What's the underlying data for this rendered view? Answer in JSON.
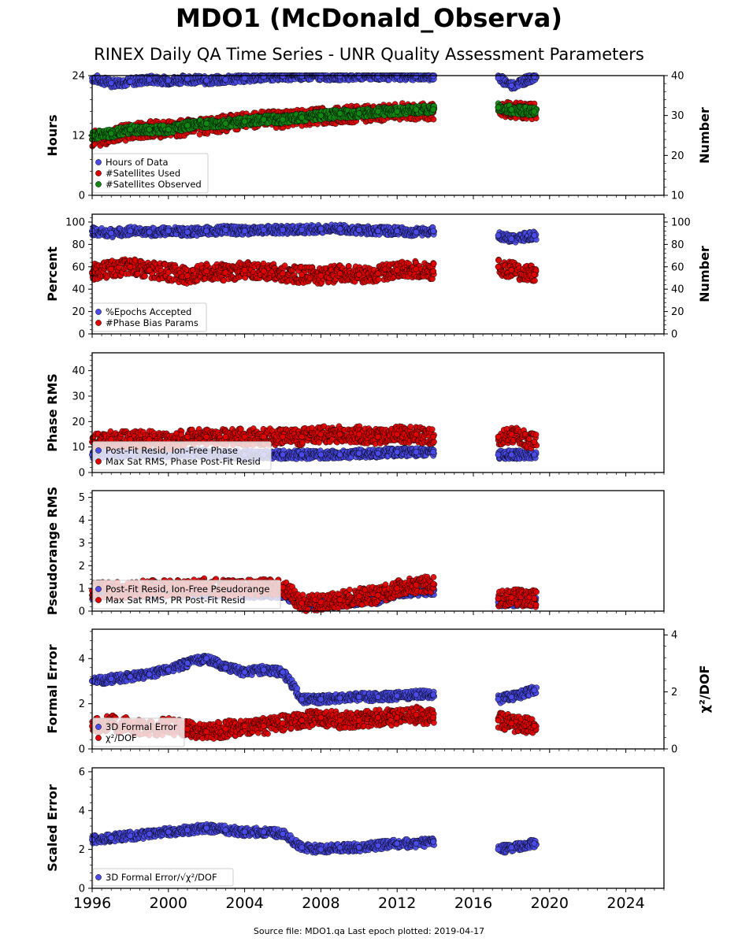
{
  "title": "MDO1 (McDonald_Observa)",
  "subtitle": "RINEX Daily QA Time Series - UNR Quality Assessment Parameters",
  "footer": "Source file: MDO1.qa Last epoch plotted: 2019-04-17",
  "colors": {
    "blue": "#4a4ae8",
    "red": "#e00000",
    "green": "#118811"
  },
  "chart_data": [
    {
      "type": "scatter",
      "ylabel": "Hours",
      "ylabel_right": "Number",
      "ylim": [
        0,
        24
      ],
      "yticks": [
        0,
        12,
        24
      ],
      "ylim_right": [
        10,
        40
      ],
      "yticks_right": [
        10,
        20,
        30,
        40
      ],
      "xlim": [
        1996,
        2026
      ],
      "legend": "bottom-left",
      "series": [
        {
          "name": "Hours of Data",
          "color": "blue",
          "axis": "left",
          "x": [
            1996.0,
            1997.0,
            1998.0,
            1999.0,
            2000.0,
            2001.0,
            2002.0,
            2003.0,
            2004.0,
            2005.0,
            2006.0,
            2007.0,
            2008.0,
            2009.0,
            2010.0,
            2011.0,
            2012.0,
            2013.0,
            2013.9,
            2017.3,
            2018.0,
            2019.2
          ],
          "y": [
            23.5,
            22.5,
            22.8,
            23.2,
            23.0,
            23.3,
            23.0,
            23.2,
            23.5,
            23.8,
            23.9,
            23.9,
            23.9,
            23.9,
            23.9,
            23.9,
            23.9,
            23.9,
            23.9,
            23.5,
            22.0,
            23.8
          ]
        },
        {
          "name": "#Satellites Used",
          "color": "red",
          "axis": "right",
          "x": [
            1996.0,
            1997.0,
            1998.0,
            1999.0,
            2000.0,
            2001.0,
            2002.0,
            2003.0,
            2004.0,
            2005.0,
            2006.0,
            2007.0,
            2008.0,
            2009.0,
            2010.0,
            2011.0,
            2012.0,
            2013.0,
            2013.9,
            2017.3,
            2018.0,
            2019.2
          ],
          "y": [
            24,
            25,
            26,
            26.5,
            26.5,
            27,
            27.5,
            28,
            28.5,
            29,
            29,
            29.5,
            30,
            30,
            30.5,
            30.5,
            31,
            31,
            31,
            32,
            31.5,
            31
          ]
        },
        {
          "name": "#Satellites Observed",
          "color": "green",
          "axis": "right",
          "x": [
            1996.0,
            1997.0,
            1998.0,
            1999.0,
            2000.0,
            2001.0,
            2002.0,
            2003.0,
            2004.0,
            2005.0,
            2006.0,
            2007.0,
            2008.0,
            2009.0,
            2010.0,
            2011.0,
            2012.0,
            2013.0,
            2013.9,
            2017.3,
            2018.0,
            2019.2
          ],
          "y": [
            25,
            25.5,
            26.5,
            26.5,
            26.5,
            27.5,
            28,
            28,
            28.5,
            29,
            29,
            29.5,
            30,
            30.5,
            30.5,
            31,
            31,
            31.5,
            31.5,
            32,
            31.5,
            31
          ]
        }
      ]
    },
    {
      "type": "scatter",
      "ylabel": "Percent",
      "ylabel_right": "Number",
      "ylim": [
        0,
        107
      ],
      "yticks": [
        0,
        20,
        40,
        60,
        80,
        100
      ],
      "ylim_right": [
        0,
        107
      ],
      "yticks_right": [
        0,
        20,
        40,
        60,
        80,
        100
      ],
      "xlim": [
        1996,
        2026
      ],
      "legend": "bottom-left",
      "series": [
        {
          "name": "%Epochs Accepted",
          "color": "blue",
          "axis": "left",
          "x": [
            1996.0,
            1997.0,
            1998.0,
            1999.0,
            2000.0,
            2001.0,
            2002.0,
            2003.0,
            2004.0,
            2005.0,
            2006.0,
            2007.0,
            2008.0,
            2009.0,
            2010.0,
            2011.0,
            2012.0,
            2013.0,
            2013.9,
            2017.3,
            2018.0,
            2019.2
          ],
          "y": [
            92,
            90,
            92,
            91,
            92,
            91,
            92,
            93,
            92,
            93,
            93,
            93,
            94,
            94,
            93,
            92,
            92,
            91,
            92,
            88,
            85,
            88
          ]
        },
        {
          "name": "#Phase Bias Params",
          "color": "red",
          "axis": "right",
          "x": [
            1996.0,
            1997.0,
            1998.0,
            1999.0,
            2000.0,
            2001.0,
            2002.0,
            2003.0,
            2004.0,
            2005.0,
            2006.0,
            2007.0,
            2008.0,
            2009.0,
            2010.0,
            2011.0,
            2012.0,
            2013.0,
            2013.9,
            2017.3,
            2018.0,
            2019.2
          ],
          "y": [
            55,
            58,
            60,
            57,
            55,
            52,
            56,
            55,
            57,
            56,
            54,
            53,
            52,
            54,
            53,
            54,
            57,
            58,
            56,
            60,
            57,
            53
          ]
        }
      ]
    },
    {
      "type": "scatter",
      "ylabel": "Phase RMS",
      "ylim": [
        0,
        47
      ],
      "yticks": [
        0,
        10,
        20,
        30,
        40
      ],
      "xlim": [
        1996,
        2026
      ],
      "legend": "bottom-left",
      "series": [
        {
          "name": "Post-Fit Resid, Ion-Free Phase",
          "color": "blue",
          "axis": "left",
          "x": [
            1996.0,
            1997.0,
            1998.0,
            1999.0,
            2000.0,
            2001.0,
            2002.0,
            2003.0,
            2004.0,
            2005.0,
            2006.0,
            2007.0,
            2008.0,
            2009.0,
            2010.0,
            2011.0,
            2012.0,
            2013.0,
            2013.9,
            2017.3,
            2018.0,
            2019.2
          ],
          "y": [
            7,
            7.5,
            7.5,
            7.5,
            7.5,
            7.5,
            7.5,
            7,
            7,
            7,
            7,
            7,
            7,
            7,
            7.5,
            7.5,
            8,
            8,
            8,
            7,
            7,
            7
          ]
        },
        {
          "name": "Max Sat RMS, Phase Post-Fit Resid",
          "color": "red",
          "axis": "left",
          "x": [
            1996.0,
            1997.0,
            1998.0,
            1999.0,
            2000.0,
            2001.0,
            2002.0,
            2003.0,
            2004.0,
            2005.0,
            2006.0,
            2007.0,
            2008.0,
            2009.0,
            2010.0,
            2011.0,
            2012.0,
            2013.0,
            2013.9,
            2017.3,
            2018.0,
            2019.2
          ],
          "y": [
            12,
            13,
            13,
            13,
            12,
            14,
            14,
            14,
            14,
            14,
            14,
            14,
            15,
            15,
            15,
            14,
            15,
            15,
            14,
            14,
            15,
            12
          ]
        }
      ]
    },
    {
      "type": "scatter",
      "ylabel": "Pseudorange RMS",
      "ylim": [
        0,
        5.3
      ],
      "yticks": [
        0,
        1,
        2,
        3,
        4,
        5
      ],
      "xlim": [
        1996,
        2026
      ],
      "legend": "bottom-left",
      "series": [
        {
          "name": "Post-Fit Resid, Ion-Free Pseudorange",
          "color": "blue",
          "axis": "left",
          "x": [
            1996.0,
            1997.0,
            1998.0,
            1999.0,
            2000.0,
            2001.0,
            2002.0,
            2003.0,
            2004.0,
            2005.0,
            2006.0,
            2007.0,
            2008.0,
            2009.0,
            2010.0,
            2011.0,
            2012.0,
            2013.0,
            2013.9,
            2017.3,
            2018.0,
            2019.2
          ],
          "y": [
            0.7,
            0.75,
            0.75,
            0.75,
            0.8,
            0.8,
            0.8,
            0.75,
            0.75,
            0.75,
            0.75,
            0.3,
            0.3,
            0.35,
            0.45,
            0.5,
            0.8,
            0.85,
            0.9,
            0.4,
            0.4,
            0.4
          ]
        },
        {
          "name": "Max Sat RMS, PR Post-Fit Resid",
          "color": "red",
          "axis": "left",
          "x": [
            1996.0,
            1997.0,
            1998.0,
            1999.0,
            2000.0,
            2001.0,
            2002.0,
            2003.0,
            2004.0,
            2005.0,
            2006.0,
            2007.0,
            2008.0,
            2009.0,
            2010.0,
            2011.0,
            2012.0,
            2013.0,
            2013.9,
            2017.3,
            2018.0,
            2019.2
          ],
          "y": [
            0.9,
            0.9,
            0.95,
            1.0,
            1.0,
            1.05,
            1.1,
            1.0,
            1.0,
            1.05,
            1.05,
            0.35,
            0.4,
            0.5,
            0.65,
            0.7,
            1.0,
            1.15,
            1.2,
            0.55,
            0.6,
            0.55
          ]
        }
      ]
    },
    {
      "type": "scatter",
      "ylabel": "Formal Error",
      "ylabel_right": "χ²/DOF",
      "ylim": [
        0,
        5.3
      ],
      "yticks": [
        0,
        2,
        4
      ],
      "ylim_right": [
        0,
        4.2
      ],
      "yticks_right": [
        0,
        2,
        4
      ],
      "xlim": [
        1996,
        2026
      ],
      "legend": "bottom-left",
      "series": [
        {
          "name": "3D Formal Error",
          "color": "blue",
          "axis": "left",
          "x": [
            1996.0,
            1997.0,
            1998.0,
            1999.0,
            2000.0,
            2001.0,
            2002.0,
            2003.0,
            2004.0,
            2005.0,
            2006.0,
            2007.0,
            2008.0,
            2009.0,
            2010.0,
            2011.0,
            2012.0,
            2013.0,
            2013.9,
            2017.3,
            2018.0,
            2019.2
          ],
          "y": [
            3.0,
            3.1,
            3.2,
            3.3,
            3.5,
            3.8,
            4.0,
            3.6,
            3.4,
            3.5,
            3.4,
            2.2,
            2.2,
            2.25,
            2.3,
            2.3,
            2.35,
            2.4,
            2.4,
            2.2,
            2.3,
            2.6
          ]
        },
        {
          "name": "χ²/DOF",
          "color": "red",
          "axis": "right",
          "x": [
            1996.0,
            1997.0,
            1998.0,
            1999.0,
            2000.0,
            2001.0,
            2002.0,
            2003.0,
            2004.0,
            2005.0,
            2006.0,
            2007.0,
            2008.0,
            2009.0,
            2010.0,
            2011.0,
            2012.0,
            2013.0,
            2013.9,
            2017.3,
            2018.0,
            2019.2
          ],
          "y": [
            0.8,
            0.9,
            0.8,
            0.7,
            0.8,
            0.7,
            0.6,
            0.7,
            0.8,
            0.8,
            0.9,
            1.0,
            1.1,
            1.0,
            1.0,
            1.1,
            1.1,
            1.2,
            1.1,
            1.0,
            0.9,
            0.8
          ]
        }
      ]
    },
    {
      "type": "scatter",
      "ylabel": "Scaled Error",
      "ylim": [
        0,
        6.2
      ],
      "yticks": [
        0,
        2,
        4,
        6
      ],
      "xlim": [
        1996,
        2026
      ],
      "xticks": [
        1996,
        2000,
        2004,
        2008,
        2012,
        2016,
        2020,
        2024
      ],
      "legend": "bottom-left",
      "series": [
        {
          "name": "3D Formal Error/√χ²/DOF",
          "color": "blue",
          "axis": "left",
          "x": [
            1996.0,
            1997.0,
            1998.0,
            1999.0,
            2000.0,
            2001.0,
            2002.0,
            2003.0,
            2004.0,
            2005.0,
            2006.0,
            2007.0,
            2008.0,
            2009.0,
            2010.0,
            2011.0,
            2012.0,
            2013.0,
            2013.9,
            2017.3,
            2018.0,
            2019.2
          ],
          "y": [
            2.5,
            2.6,
            2.7,
            2.8,
            2.9,
            3.0,
            3.1,
            3.0,
            2.9,
            2.9,
            2.8,
            2.1,
            2.0,
            2.1,
            2.1,
            2.2,
            2.3,
            2.3,
            2.4,
            2.0,
            2.1,
            2.3
          ]
        }
      ]
    }
  ]
}
